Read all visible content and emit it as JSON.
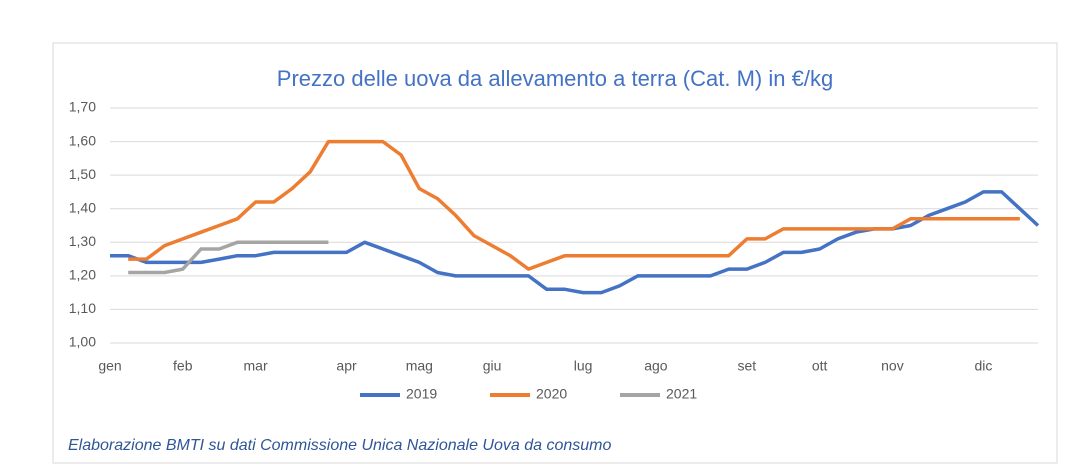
{
  "chart_data": {
    "type": "line",
    "title": "Prezzo delle uova da allevamento a terra (Cat. M) in €/kg",
    "source": "Elaborazione BMTI su dati Commissione Unica Nazionale Uova da consumo",
    "categories": [
      "gen",
      null,
      null,
      null,
      "feb",
      null,
      null,
      null,
      "mar",
      null,
      null,
      null,
      null,
      "apr",
      null,
      null,
      null,
      "mag",
      null,
      null,
      null,
      "giu",
      null,
      null,
      null,
      null,
      "lug",
      null,
      null,
      null,
      "ago",
      null,
      null,
      null,
      null,
      "set",
      null,
      null,
      null,
      "ott",
      null,
      null,
      null,
      "nov",
      null,
      null,
      null,
      null,
      "dic",
      null,
      null,
      null
    ],
    "series": [
      {
        "name": "2019",
        "color": "#4472c4",
        "values": [
          1.26,
          1.26,
          1.24,
          1.24,
          1.24,
          1.24,
          1.25,
          1.26,
          1.26,
          1.27,
          1.27,
          1.27,
          1.27,
          1.27,
          1.3,
          1.28,
          1.26,
          1.24,
          1.21,
          1.2,
          1.2,
          1.2,
          1.2,
          1.2,
          1.16,
          1.16,
          1.15,
          1.15,
          1.17,
          1.2,
          1.2,
          1.2,
          1.2,
          1.2,
          1.22,
          1.22,
          1.24,
          1.27,
          1.27,
          1.28,
          1.31,
          1.33,
          1.34,
          1.34,
          1.35,
          1.38,
          1.4,
          1.42,
          1.45,
          1.45,
          1.4,
          1.35
        ]
      },
      {
        "name": "2020",
        "color": "#ed7d31",
        "values": [
          null,
          1.25,
          1.25,
          1.29,
          1.31,
          1.33,
          1.35,
          1.37,
          1.42,
          1.42,
          1.46,
          1.51,
          1.6,
          1.6,
          1.6,
          1.6,
          1.56,
          1.46,
          1.43,
          1.38,
          1.32,
          1.29,
          1.26,
          1.22,
          1.24,
          1.26,
          1.26,
          1.26,
          1.26,
          1.26,
          1.26,
          1.26,
          1.26,
          1.26,
          1.26,
          1.31,
          1.31,
          1.34,
          1.34,
          1.34,
          1.34,
          1.34,
          1.34,
          1.34,
          1.37,
          1.37,
          1.37,
          1.37,
          1.37,
          1.37,
          1.37,
          null
        ]
      },
      {
        "name": "2021",
        "color": "#a5a5a5",
        "values": [
          null,
          1.21,
          1.21,
          1.21,
          1.22,
          1.28,
          1.28,
          1.3,
          1.3,
          1.3,
          1.3,
          1.3,
          1.3,
          null,
          null,
          null,
          null,
          null,
          null,
          null,
          null,
          null,
          null,
          null,
          null,
          null,
          null,
          null,
          null,
          null,
          null,
          null,
          null,
          null,
          null,
          null,
          null,
          null,
          null,
          null,
          null,
          null,
          null,
          null,
          null,
          null,
          null,
          null,
          null,
          null,
          null,
          null
        ]
      }
    ],
    "ylim": [
      1.0,
      1.7
    ],
    "yticks": [
      {
        "value": 1.0,
        "label": "1,00"
      },
      {
        "value": 1.1,
        "label": "1,10"
      },
      {
        "value": 1.2,
        "label": "1,20"
      },
      {
        "value": 1.3,
        "label": "1,30"
      },
      {
        "value": 1.4,
        "label": "1,40"
      },
      {
        "value": 1.5,
        "label": "1,50"
      },
      {
        "value": 1.6,
        "label": "1,60"
      },
      {
        "value": 1.7,
        "label": "1,70"
      }
    ],
    "grid": true,
    "legend": "bottom"
  }
}
